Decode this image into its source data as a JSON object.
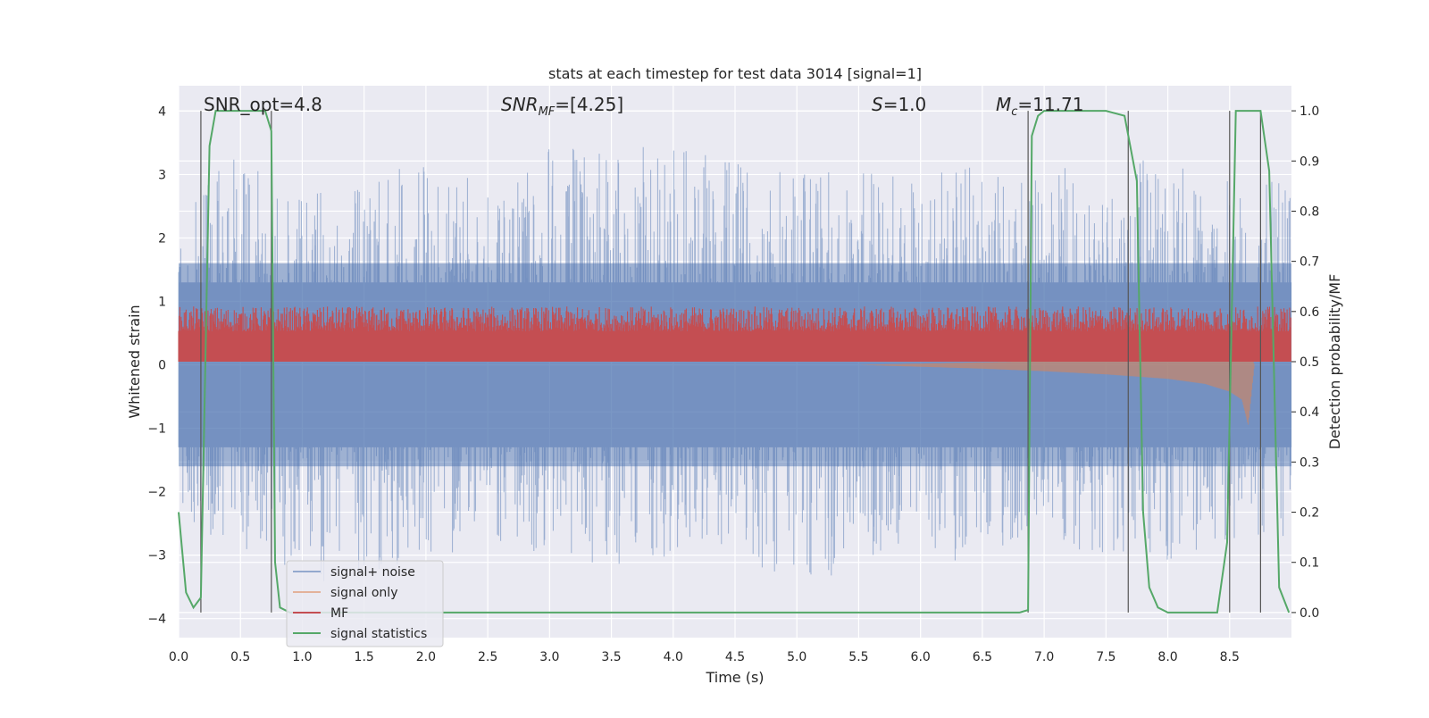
{
  "chart_data": {
    "type": "line",
    "title": "stats at each timestep for test data 3014 [signal=1]",
    "xlabel": "Time (s)",
    "ylabel": "Whitened strain",
    "y2label": "Detection probability/MF",
    "xlim": [
      0,
      9
    ],
    "ylim": [
      -4.3,
      4.4
    ],
    "y2lim": [
      -0.05,
      1.05
    ],
    "xticks": [
      0.0,
      0.5,
      1.0,
      1.5,
      2.0,
      2.5,
      3.0,
      3.5,
      4.0,
      4.5,
      5.0,
      5.5,
      6.0,
      6.5,
      7.0,
      7.5,
      8.0,
      8.5
    ],
    "xtick_labels": [
      "0.0",
      "0.5",
      "1.0",
      "1.5",
      "2.0",
      "2.5",
      "3.0",
      "3.5",
      "4.0",
      "4.5",
      "5.0",
      "5.5",
      "6.0",
      "6.5",
      "7.0",
      "7.5",
      "8.0",
      "8.5"
    ],
    "yticks": [
      -4,
      -3,
      -2,
      -1,
      0,
      1,
      2,
      3,
      4
    ],
    "ytick_labels": [
      "−4",
      "−3",
      "−2",
      "−1",
      "0",
      "1",
      "2",
      "3",
      "4"
    ],
    "y2ticks": [
      0.0,
      0.1,
      0.2,
      0.3,
      0.4,
      0.5,
      0.6,
      0.7,
      0.8,
      0.9,
      1.0
    ],
    "y2tick_labels": [
      "0.0",
      "0.1",
      "0.2",
      "0.3",
      "0.4",
      "0.5",
      "0.6",
      "0.7",
      "0.8",
      "0.9",
      "1.0"
    ],
    "grid": true,
    "legend_position": "lower-left",
    "annotations": {
      "snr_opt": "SNR_opt=4.8",
      "snr_mf_label": "SNR",
      "snr_mf_sub": "MF",
      "snr_mf_value": "=[4.25]",
      "s_label": "S",
      "s_value": "=1.0",
      "mc_label": "M",
      "mc_sub": "c",
      "mc_value": "=11.71"
    },
    "series": [
      {
        "name": "signal+ noise",
        "color": "#4c72b0",
        "axis": "left",
        "envelope": {
          "x": [
            0.0,
            0.5,
            1.0,
            1.5,
            2.0,
            2.5,
            3.0,
            3.5,
            4.0,
            4.5,
            5.0,
            5.5,
            6.0,
            6.5,
            7.0,
            7.5,
            8.0,
            8.5,
            9.0
          ],
          "upper": [
            2.6,
            3.4,
            2.6,
            3.1,
            3.3,
            2.9,
            3.5,
            3.4,
            3.5,
            3.2,
            3.5,
            3.0,
            3.4,
            3.3,
            3.1,
            3.2,
            3.3,
            2.9,
            2.9
          ],
          "lower": [
            -2.4,
            -3.0,
            -3.5,
            -3.4,
            -3.0,
            -2.9,
            -3.0,
            -3.2,
            -3.0,
            -3.0,
            -3.6,
            -3.1,
            -3.0,
            -3.2,
            -2.8,
            -3.0,
            -3.3,
            -2.8,
            -2.8
          ]
        }
      },
      {
        "name": "signal only",
        "color": "#dd8452",
        "axis": "left",
        "envelope": {
          "x": [
            0.0,
            5.5,
            6.0,
            6.5,
            7.0,
            7.5,
            8.0,
            8.3,
            8.5,
            8.6,
            8.65,
            8.7,
            9.0
          ],
          "upper": [
            0.0,
            0.0,
            0.02,
            0.04,
            0.06,
            0.09,
            0.13,
            0.17,
            0.22,
            0.27,
            0.3,
            0.0,
            0.0
          ],
          "lower": [
            0.0,
            0.0,
            -0.03,
            -0.06,
            -0.1,
            -0.15,
            -0.22,
            -0.3,
            -0.42,
            -0.55,
            -0.95,
            0.0,
            0.0
          ]
        }
      },
      {
        "name": "MF",
        "color": "#c44e52",
        "axis": "right",
        "envelope": {
          "x": [
            0.0,
            9.0
          ],
          "upper": [
            0.61,
            0.61
          ],
          "lower": [
            0.5,
            0.5
          ]
        }
      },
      {
        "name": "signal statistics",
        "color": "#55a868",
        "axis": "right",
        "x": [
          0.0,
          0.06,
          0.12,
          0.18,
          0.25,
          0.3,
          0.4,
          0.5,
          0.6,
          0.7,
          0.75,
          0.78,
          0.82,
          0.9,
          1.0,
          2.0,
          3.0,
          4.0,
          5.0,
          6.0,
          6.8,
          6.87,
          6.9,
          6.95,
          7.0,
          7.2,
          7.5,
          7.65,
          7.75,
          7.8,
          7.85,
          7.92,
          8.0,
          8.2,
          8.4,
          8.48,
          8.55,
          8.6,
          8.7,
          8.75,
          8.82,
          8.9,
          8.98
        ],
        "y": [
          0.2,
          0.04,
          0.01,
          0.03,
          0.93,
          1.0,
          1.0,
          1.0,
          1.0,
          1.0,
          0.96,
          0.1,
          0.01,
          0.0,
          0.0,
          0.0,
          0.0,
          0.0,
          0.0,
          0.0,
          0.0,
          0.005,
          0.95,
          0.99,
          1.0,
          1.0,
          1.0,
          0.99,
          0.86,
          0.2,
          0.05,
          0.01,
          0.0,
          0.0,
          0.0,
          0.14,
          1.0,
          1.0,
          1.0,
          1.0,
          0.88,
          0.05,
          0.0
        ]
      }
    ],
    "vertical_markers": [
      0.18,
      0.75,
      6.87,
      7.68,
      8.5,
      8.75
    ]
  }
}
